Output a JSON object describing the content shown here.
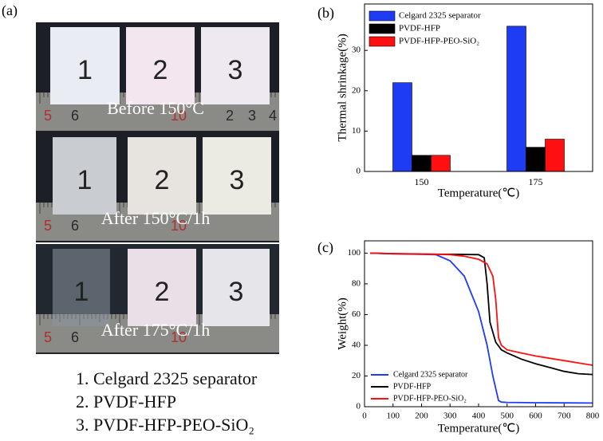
{
  "photo_panel": {
    "panel_label": "(a)",
    "rows": [
      {
        "caption": "Before 150°C",
        "samples": [
          "1",
          "2",
          "3"
        ],
        "ruler": [
          "5",
          "6",
          "10",
          "2",
          "3",
          "4"
        ]
      },
      {
        "caption": "After 150°C/1h",
        "samples": [
          "1",
          "2",
          "3"
        ],
        "ruler": [
          "5",
          "6",
          "10"
        ]
      },
      {
        "caption": "After 175°C/1h",
        "samples": [
          "1",
          "2",
          "3"
        ],
        "ruler": [
          "5",
          "6",
          "10"
        ]
      }
    ],
    "key": [
      "1. Celgard 2325 separator",
      "2. PVDF-HFP",
      "3. PVDF-HFP-PEO-SiO₂"
    ]
  },
  "chart_data": [
    {
      "type": "bar",
      "panel_label": "(b)",
      "xlabel": "Temperature(℃)",
      "ylabel": "Thermal shrinkage(%)",
      "categories": [
        "150",
        "175"
      ],
      "series": [
        {
          "name": "Celgard 2325 separator",
          "color": "#1f3cf5",
          "values": [
            22,
            36
          ]
        },
        {
          "name": "PVDF-HFP",
          "color": "#000000",
          "values": [
            4,
            6
          ]
        },
        {
          "name": "PVDF-HFP-PEO-SiO₂",
          "color": "#ff1010",
          "values": [
            4,
            8
          ]
        }
      ],
      "ylim": [
        0,
        41.5
      ],
      "yticks": [
        0,
        10,
        20,
        30
      ],
      "legend": "upper-left"
    },
    {
      "type": "line",
      "panel_label": "(c)",
      "xlabel": "Temperature(℃)",
      "ylabel": "Weight(%)",
      "series": [
        {
          "name": "Celgard 2325 separator",
          "color": "#1f3cf5",
          "x": [
            20,
            100,
            200,
            250,
            300,
            350,
            400,
            430,
            450,
            470,
            480,
            500,
            600,
            700,
            800
          ],
          "values": [
            100,
            99.6,
            99.3,
            99,
            95,
            85,
            62,
            40,
            20,
            4,
            3,
            2.8,
            2.6,
            2.5,
            2.4
          ]
        },
        {
          "name": "PVDF-HFP",
          "color": "#000000",
          "x": [
            20,
            100,
            200,
            300,
            400,
            420,
            430,
            440,
            460,
            480,
            500,
            550,
            600,
            650,
            700,
            750,
            800
          ],
          "values": [
            100,
            99.6,
            99.4,
            99.2,
            99,
            97,
            80,
            55,
            42,
            37,
            35,
            31,
            28,
            25.5,
            23,
            21.5,
            21
          ]
        },
        {
          "name": "PVDF-HFP-PEO-SiO₂",
          "color": "#ff1010",
          "x": [
            20,
            100,
            200,
            300,
            350,
            400,
            430,
            450,
            460,
            470,
            480,
            500,
            550,
            600,
            650,
            700,
            750,
            800
          ],
          "values": [
            100,
            99.7,
            99.5,
            99,
            98,
            96,
            93,
            85,
            70,
            45,
            40,
            37,
            35,
            33,
            31.5,
            30,
            28.5,
            27
          ]
        }
      ],
      "xlim": [
        0,
        800
      ],
      "xticks": [
        0,
        100,
        200,
        300,
        400,
        500,
        600,
        700,
        800
      ],
      "ylim": [
        0,
        108
      ],
      "yticks": [
        0,
        20,
        40,
        60,
        80,
        100
      ],
      "legend": "lower-left"
    }
  ]
}
